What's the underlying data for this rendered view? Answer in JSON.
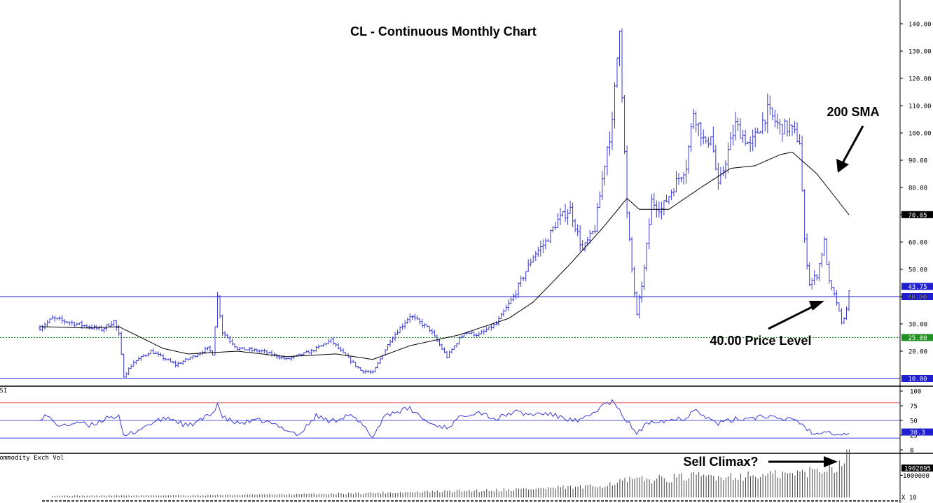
{
  "chart_data": [
    {
      "type": "ohlc",
      "title": "CL - Continuous Monthly Chart",
      "ylim": [
        10,
        145
      ],
      "y_ticks": [
        20,
        30,
        40,
        50,
        60,
        70,
        80,
        90,
        100,
        110,
        120,
        130,
        140
      ],
      "y_tick_labels": [
        "20.00",
        "30.00",
        "40.00",
        "50.00",
        "60.00",
        "70.00",
        "80.00",
        "90.00",
        "100.00",
        "110.00",
        "120.00",
        "130.00",
        "140.00"
      ],
      "price_levels": [
        {
          "value": 40,
          "label": "40.00",
          "color": "#1f1fd0",
          "style": "solid"
        },
        {
          "value": 25,
          "label": "25.00",
          "color": "#1f8f1f",
          "style": "dotted"
        },
        {
          "value": 10,
          "label": "10.00",
          "color": "#1f1fd0",
          "style": "solid"
        }
      ],
      "last_price": {
        "value": 43.75,
        "label": "43.75"
      },
      "sma_last": {
        "value": 70.05,
        "label": "70.05"
      },
      "anchors": [
        [
          0,
          28.5
        ],
        [
          5,
          32
        ],
        [
          15,
          30
        ],
        [
          25,
          28
        ],
        [
          30,
          31
        ],
        [
          32,
          26
        ],
        [
          34,
          11
        ],
        [
          38,
          16
        ],
        [
          45,
          20
        ],
        [
          55,
          15
        ],
        [
          62,
          18
        ],
        [
          68,
          21
        ],
        [
          70,
          19
        ],
        [
          72,
          40
        ],
        [
          74,
          27
        ],
        [
          80,
          21
        ],
        [
          90,
          20
        ],
        [
          100,
          17
        ],
        [
          110,
          20
        ],
        [
          118,
          24
        ],
        [
          122,
          20
        ],
        [
          130,
          13
        ],
        [
          135,
          12
        ],
        [
          142,
          24
        ],
        [
          150,
          33
        ],
        [
          158,
          28
        ],
        [
          165,
          18
        ],
        [
          172,
          27
        ],
        [
          178,
          26
        ],
        [
          185,
          30
        ],
        [
          192,
          40
        ],
        [
          200,
          55
        ],
        [
          205,
          60
        ],
        [
          210,
          68
        ],
        [
          215,
          72
        ],
        [
          220,
          57
        ],
        [
          225,
          65
        ],
        [
          230,
          95
        ],
        [
          232,
          103
        ],
        [
          235,
          140
        ],
        [
          236,
          115
        ],
        [
          238,
          70
        ],
        [
          240,
          50
        ],
        [
          242,
          33
        ],
        [
          245,
          50
        ],
        [
          248,
          75
        ],
        [
          252,
          72
        ],
        [
          258,
          82
        ],
        [
          262,
          88
        ],
        [
          265,
          108
        ],
        [
          270,
          95
        ],
        [
          272,
          100
        ],
        [
          275,
          80
        ],
        [
          278,
          90
        ],
        [
          282,
          103
        ],
        [
          288,
          95
        ],
        [
          295,
          108
        ],
        [
          300,
          102
        ],
        [
          304,
          102
        ],
        [
          308,
          97
        ],
        [
          310,
          60
        ],
        [
          312,
          45
        ],
        [
          315,
          48
        ],
        [
          318,
          60
        ],
        [
          320,
          45
        ],
        [
          323,
          38
        ],
        [
          325,
          30
        ],
        [
          327,
          35
        ],
        [
          328,
          43
        ]
      ],
      "sma_anchors": [
        [
          0,
          29
        ],
        [
          20,
          28.5
        ],
        [
          32,
          29
        ],
        [
          50,
          21
        ],
        [
          60,
          19
        ],
        [
          80,
          20
        ],
        [
          100,
          18
        ],
        [
          120,
          19
        ],
        [
          135,
          17
        ],
        [
          150,
          22
        ],
        [
          170,
          26
        ],
        [
          190,
          32
        ],
        [
          200,
          38
        ],
        [
          215,
          52
        ],
        [
          228,
          65
        ],
        [
          238,
          76
        ],
        [
          243,
          72
        ],
        [
          255,
          72
        ],
        [
          268,
          80
        ],
        [
          280,
          87
        ],
        [
          290,
          88
        ],
        [
          300,
          92
        ],
        [
          305,
          93
        ],
        [
          315,
          85
        ],
        [
          328,
          70
        ]
      ],
      "n_bars": 329
    },
    {
      "type": "line",
      "name": "RSI",
      "label": "RSI",
      "ylim": [
        0,
        100
      ],
      "y_ticks": [
        0,
        25,
        50,
        75,
        100
      ],
      "y_tick_labels": [
        "0",
        "25",
        "50",
        "75",
        "100"
      ],
      "reference_levels": [
        {
          "value": 80,
          "color": "#e04040"
        },
        {
          "value": 50,
          "color": "#1f1fd0"
        },
        {
          "value": 20,
          "color": "#1f1fd0"
        }
      ],
      "last_value": {
        "value": 30.3,
        "label": "30.3"
      },
      "anchors": [
        [
          0,
          55
        ],
        [
          3,
          58
        ],
        [
          6,
          45
        ],
        [
          10,
          40
        ],
        [
          15,
          48
        ],
        [
          20,
          40
        ],
        [
          25,
          50
        ],
        [
          28,
          58
        ],
        [
          32,
          55
        ],
        [
          34,
          22
        ],
        [
          38,
          30
        ],
        [
          45,
          45
        ],
        [
          52,
          55
        ],
        [
          60,
          40
        ],
        [
          65,
          50
        ],
        [
          70,
          62
        ],
        [
          72,
          80
        ],
        [
          74,
          55
        ],
        [
          80,
          45
        ],
        [
          90,
          50
        ],
        [
          100,
          35
        ],
        [
          105,
          25
        ],
        [
          112,
          58
        ],
        [
          118,
          48
        ],
        [
          125,
          60
        ],
        [
          130,
          45
        ],
        [
          135,
          22
        ],
        [
          140,
          60
        ],
        [
          150,
          70
        ],
        [
          158,
          45
        ],
        [
          165,
          38
        ],
        [
          172,
          60
        ],
        [
          178,
          65
        ],
        [
          185,
          52
        ],
        [
          192,
          65
        ],
        [
          198,
          60
        ],
        [
          205,
          62
        ],
        [
          212,
          55
        ],
        [
          218,
          48
        ],
        [
          222,
          55
        ],
        [
          228,
          75
        ],
        [
          232,
          82
        ],
        [
          236,
          60
        ],
        [
          242,
          28
        ],
        [
          248,
          50
        ],
        [
          254,
          50
        ],
        [
          262,
          55
        ],
        [
          266,
          72
        ],
        [
          270,
          55
        ],
        [
          275,
          45
        ],
        [
          282,
          52
        ],
        [
          288,
          55
        ],
        [
          295,
          58
        ],
        [
          300,
          50
        ],
        [
          305,
          55
        ],
        [
          310,
          40
        ],
        [
          314,
          25
        ],
        [
          318,
          35
        ],
        [
          322,
          28
        ],
        [
          326,
          26
        ],
        [
          328,
          30
        ]
      ]
    },
    {
      "type": "bar",
      "name": "Commodity Exch Vol",
      "label": "Commodity Exch Vol",
      "ylim": [
        0,
        2600000
      ],
      "y_tick_labels": [
        "1000000"
      ],
      "last_value": {
        "value": 1902895,
        "label": "1902895"
      },
      "axis_note": "X 10",
      "anchors": [
        [
          0,
          80000
        ],
        [
          60,
          100000
        ],
        [
          100,
          150000
        ],
        [
          150,
          250000
        ],
        [
          190,
          380000
        ],
        [
          220,
          500000
        ],
        [
          232,
          780000
        ],
        [
          245,
          850000
        ],
        [
          262,
          980000
        ],
        [
          285,
          1000000
        ],
        [
          300,
          1080000
        ],
        [
          310,
          1250000
        ],
        [
          318,
          1500000
        ],
        [
          324,
          2050000
        ],
        [
          328,
          1750000
        ]
      ]
    }
  ],
  "annotations": [
    {
      "text": "200 SMA"
    },
    {
      "text": "40.00 Price Level"
    },
    {
      "text": "Sell Climax?"
    }
  ],
  "colors": {
    "price_bars": "#3a3ad8",
    "sma": "#000000",
    "rsi": "#3a3ad8",
    "volume": "#444444",
    "level_blue": "#1f1fd0",
    "level_green": "#1f8f1f",
    "tag_black": "#000000"
  }
}
